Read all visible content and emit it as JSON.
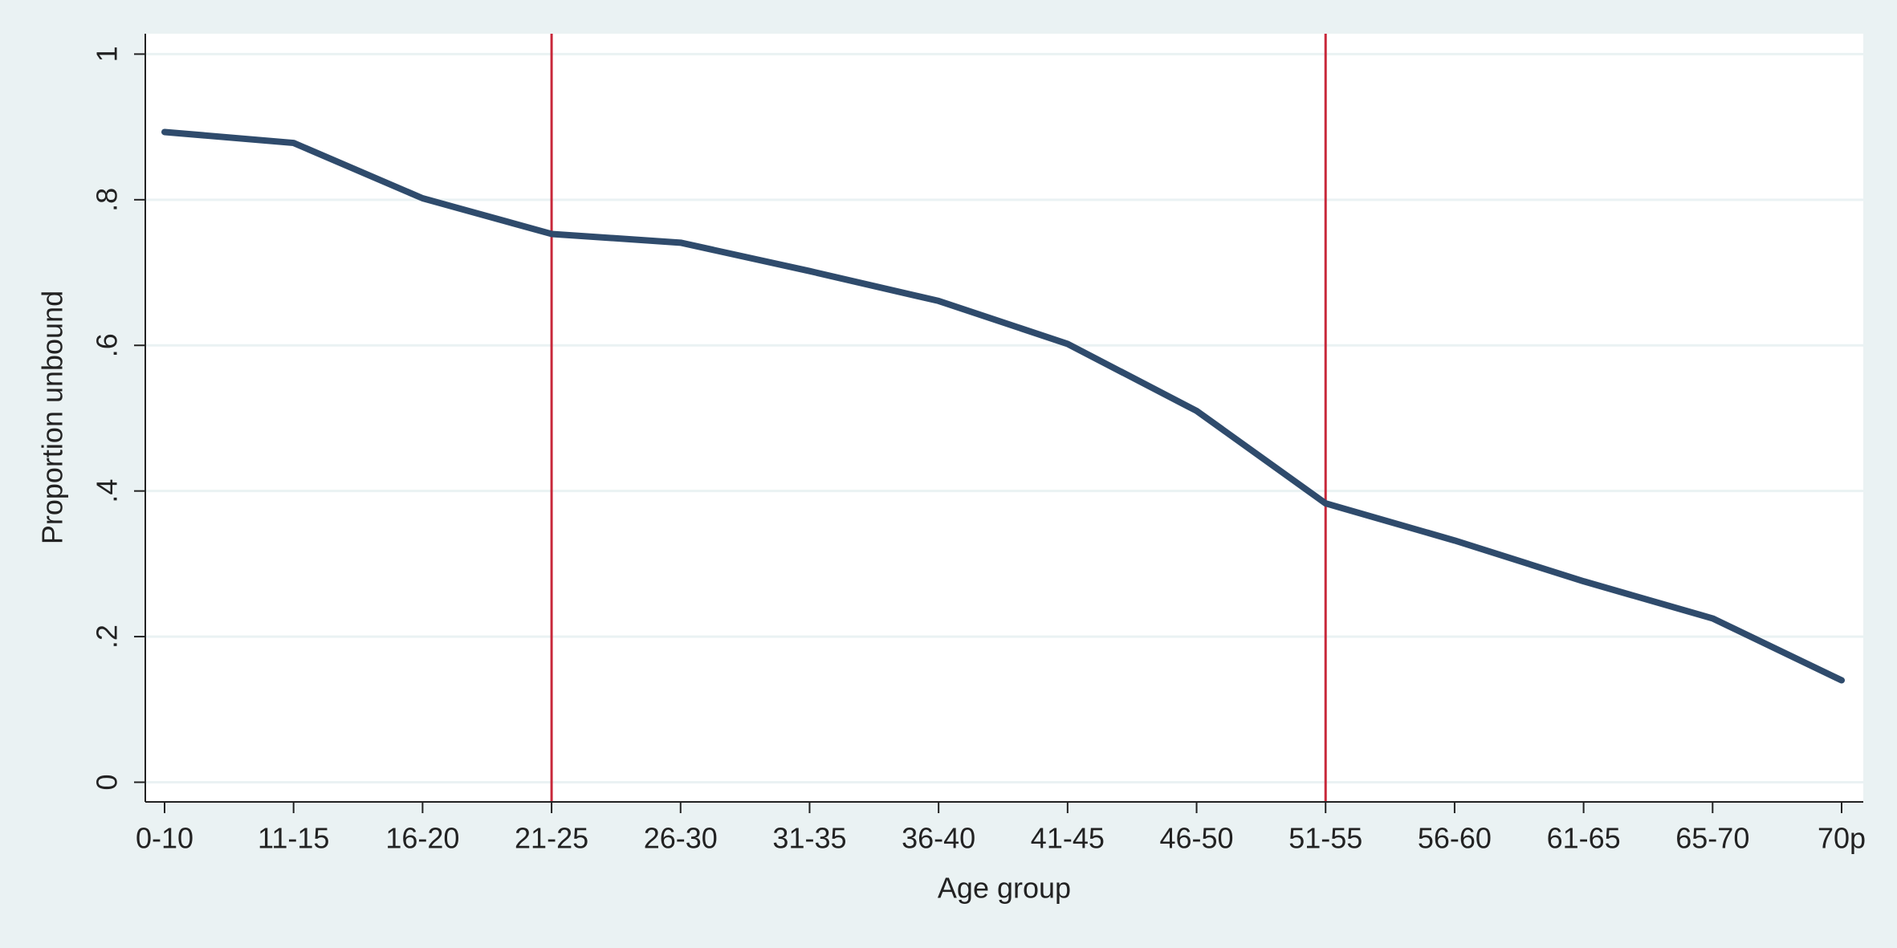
{
  "chart_data": {
    "type": "line",
    "x_label": "Age group",
    "y_label": "Proportion unbound",
    "categories": [
      "0-10",
      "11-15",
      "16-20",
      "21-25",
      "26-30",
      "31-35",
      "36-40",
      "41-45",
      "46-50",
      "51-55",
      "56-60",
      "61-65",
      "65-70",
      "70p"
    ],
    "series": [
      {
        "color": "#2f4b6c",
        "values": [
          0.893,
          0.878,
          0.802,
          0.753,
          0.741,
          0.702,
          0.661,
          0.602,
          0.51,
          0.383,
          0.332,
          0.276,
          0.225,
          0.14
        ]
      }
    ],
    "vlines": {
      "at": [
        "21-25",
        "51-55"
      ],
      "color": "#c8283a"
    },
    "ylim": [
      -0.027,
      1.028
    ],
    "yticks": [
      0,
      {
        "value": 0.2,
        "label": ".2"
      },
      {
        "value": 0.4,
        "label": ".4"
      },
      {
        "value": 0.6,
        "label": ".6"
      },
      {
        "value": 0.8,
        "label": ".8"
      },
      1
    ],
    "grid": true
  }
}
